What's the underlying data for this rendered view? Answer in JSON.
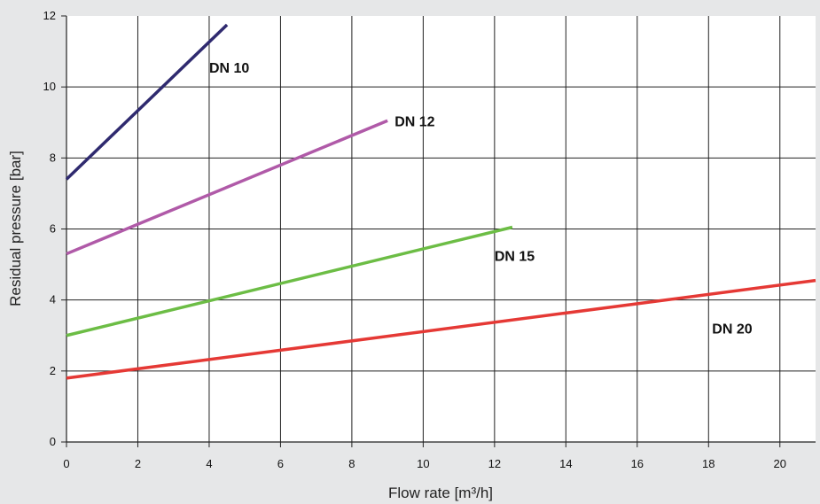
{
  "chart_data": {
    "type": "line",
    "title": "",
    "xlabel": "Flow rate [m³/h]",
    "ylabel": "Residual pressure [bar]",
    "xlim": [
      0,
      21
    ],
    "ylim": [
      0,
      12
    ],
    "xticks": [
      "0",
      "2",
      "4",
      "6",
      "8",
      "10",
      "12",
      "14",
      "16",
      "18",
      "20"
    ],
    "yticks": [
      "0",
      "2",
      "4",
      "6",
      "8",
      "10",
      "12"
    ],
    "grid": true,
    "series": [
      {
        "name": "DN 10",
        "color": "#2f2a6f",
        "x": [
          0,
          4.5
        ],
        "y": [
          7.4,
          11.75
        ]
      },
      {
        "name": "DN 12",
        "color": "#b05aa8",
        "x": [
          0,
          9
        ],
        "y": [
          5.3,
          9.05
        ]
      },
      {
        "name": "DN 15",
        "color": "#6cbd45",
        "x": [
          0,
          12.5
        ],
        "y": [
          3.0,
          6.05
        ]
      },
      {
        "name": "DN 20",
        "color": "#e53935",
        "x": [
          0,
          21
        ],
        "y": [
          1.8,
          4.55
        ]
      }
    ]
  }
}
